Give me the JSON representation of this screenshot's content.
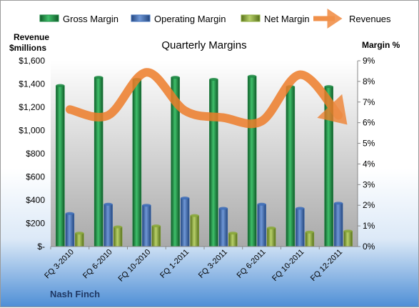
{
  "chart_data": {
    "type": "bar",
    "title": "Quarterly Margins",
    "company": "Nash Finch",
    "y_left_label_line1": "Revenue",
    "y_left_label_line2": "$millions",
    "y_right_label": "Margin %",
    "ylim_left": [
      0,
      1600
    ],
    "ylim_right": [
      0,
      9
    ],
    "grid": false,
    "legend_placement": "top",
    "categories": [
      "FQ 3-2010",
      "FQ 6-2010",
      "FQ 10-2010",
      "FQ 1-2011",
      "FQ 3-2011",
      "FQ 6-2011",
      "FQ 10-2011",
      "FQ 12-2011"
    ],
    "y_left_ticks": [
      "$-",
      "$200",
      "$400",
      "$600",
      "$800",
      "$1,000",
      "$1,200",
      "$1,400",
      "$1,600"
    ],
    "y_right_ticks": [
      "0%",
      "1%",
      "2%",
      "3%",
      "4%",
      "5%",
      "6%",
      "7%",
      "8%",
      "9%"
    ],
    "series": [
      {
        "name": "Gross Margin",
        "type": "bar",
        "axis": "right",
        "color": "#1e8a44",
        "values": [
          7.8,
          8.2,
          8.1,
          8.2,
          8.1,
          8.25,
          7.75,
          7.75
        ]
      },
      {
        "name": "Operating Margin",
        "type": "bar",
        "axis": "right",
        "color": "#3f6fb8",
        "values": [
          1.6,
          2.05,
          2.0,
          2.35,
          1.85,
          2.05,
          1.85,
          2.1
        ]
      },
      {
        "name": "Net Margin",
        "type": "bar",
        "axis": "right",
        "color": "#8aa83a",
        "values": [
          0.65,
          0.95,
          1.0,
          1.5,
          0.65,
          0.9,
          0.7,
          0.75
        ]
      },
      {
        "name": "Revenues",
        "type": "line",
        "axis": "left",
        "color": "#f28a30",
        "values": [
          1180,
          1130,
          1500,
          1170,
          1110,
          1080,
          1480,
          1130
        ]
      }
    ]
  }
}
